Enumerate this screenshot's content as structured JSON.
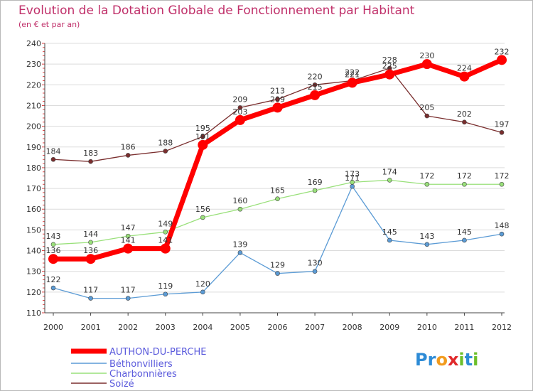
{
  "header": {
    "title": "Evolution de la Dotation Globale de Fonctionnement par Habitant",
    "subtitle": "(en € et par an)"
  },
  "logo": {
    "text": "Proxiti",
    "letters": [
      "P",
      "r",
      "o",
      "x",
      "i",
      "t",
      "i"
    ],
    "colors": [
      "#2d8bd6",
      "#2d8bd6",
      "#f29b1d",
      "#e0292b",
      "#6cbf2a",
      "#2d8bd6",
      "#6cbf2a"
    ]
  },
  "chart_data": {
    "type": "line",
    "title": "Evolution de la Dotation Globale de Fonctionnement par Habitant",
    "subtitle": "(en € et par an)",
    "x": [
      "2000",
      "2001",
      "2002",
      "2003",
      "2004",
      "2005",
      "2006",
      "2007",
      "2008",
      "2009",
      "2010",
      "2011",
      "2012"
    ],
    "ylim": [
      110,
      240
    ],
    "yticks": [
      "110",
      "120",
      "130",
      "140",
      "150",
      "160",
      "170",
      "180",
      "190",
      "200",
      "210",
      "220",
      "230",
      "240"
    ],
    "grid": "horizontal",
    "legend_position": "bottom-left",
    "series": [
      {
        "name": "AUTHON-DU-PERCHE",
        "color": "#ff0000",
        "values": [
          136,
          136,
          141,
          141,
          191,
          203,
          209,
          215,
          221,
          225,
          230,
          224,
          232
        ],
        "labels": [
          "136",
          "136",
          "141",
          "141",
          "191",
          "203",
          "209",
          "215",
          "221",
          "225",
          "230",
          "224",
          "232"
        ]
      },
      {
        "name": "Béthonvilliers",
        "color": "#5b9bd5",
        "values": [
          122,
          117,
          117,
          119,
          120,
          139,
          129,
          130,
          171,
          145,
          143,
          145,
          148
        ],
        "labels": [
          "122",
          "117",
          "117",
          "119",
          "120",
          "139",
          "129",
          "130",
          "171",
          "145",
          "143",
          "145",
          "148"
        ]
      },
      {
        "name": "Charbonnières",
        "color": "#99e07a",
        "values": [
          143,
          144,
          147,
          149,
          156,
          160,
          165,
          169,
          173,
          174,
          172,
          172,
          172
        ],
        "labels": [
          "143",
          "144",
          "147",
          "149",
          "156",
          "160",
          "165",
          "169",
          "173",
          "174",
          "172",
          "172",
          "172"
        ]
      },
      {
        "name": "Soizé",
        "color": "#7a2e2e",
        "values": [
          184,
          183,
          186,
          188,
          195,
          209,
          213,
          220,
          222,
          228,
          205,
          202,
          197
        ],
        "labels": [
          "184",
          "183",
          "186",
          "188",
          "195",
          "209",
          "213",
          "220",
          "222",
          "228",
          "205",
          "202",
          "197"
        ]
      }
    ]
  }
}
